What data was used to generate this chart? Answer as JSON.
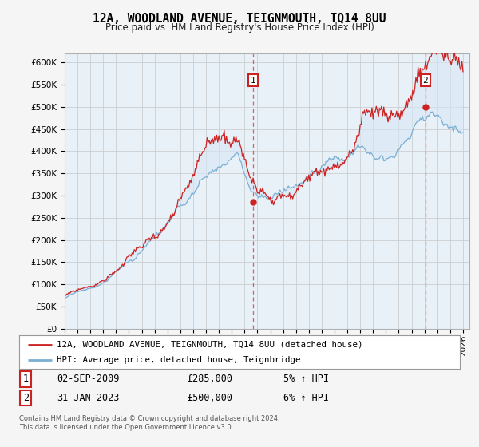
{
  "title": "12A, WOODLAND AVENUE, TEIGNMOUTH, TQ14 8UU",
  "subtitle": "Price paid vs. HM Land Registry's House Price Index (HPI)",
  "ylabel_ticks": [
    "£0",
    "£50K",
    "£100K",
    "£150K",
    "£200K",
    "£250K",
    "£300K",
    "£350K",
    "£400K",
    "£450K",
    "£500K",
    "£550K",
    "£600K"
  ],
  "ytick_values": [
    0,
    50000,
    100000,
    150000,
    200000,
    250000,
    300000,
    350000,
    400000,
    450000,
    500000,
    550000,
    600000
  ],
  "ylim": [
    0,
    620000
  ],
  "xlim_start": 1995.0,
  "xlim_end": 2026.5,
  "x_tick_years": [
    1995,
    1996,
    1997,
    1998,
    1999,
    2000,
    2001,
    2002,
    2003,
    2004,
    2005,
    2006,
    2007,
    2008,
    2009,
    2010,
    2011,
    2012,
    2013,
    2014,
    2015,
    2016,
    2017,
    2018,
    2019,
    2020,
    2021,
    2022,
    2023,
    2024,
    2025,
    2026
  ],
  "sale1_x": 2009.67,
  "sale1_y": 285000,
  "sale2_x": 2023.08,
  "sale2_y": 500000,
  "hpi_line_color": "#7bafd4",
  "hpi_fill_color": "#d6e8f7",
  "price_line_color": "#cc2222",
  "marker_color": "#cc2222",
  "dashed_line_color": "#dd4444",
  "legend_line1": "12A, WOODLAND AVENUE, TEIGNMOUTH, TQ14 8UU (detached house)",
  "legend_line2": "HPI: Average price, detached house, Teignbridge",
  "annotation1_date": "02-SEP-2009",
  "annotation1_price": "£285,000",
  "annotation1_pct": "5% ↑ HPI",
  "annotation2_date": "31-JAN-2023",
  "annotation2_price": "£500,000",
  "annotation2_pct": "6% ↑ HPI",
  "footer": "Contains HM Land Registry data © Crown copyright and database right 2024.\nThis data is licensed under the Open Government Licence v3.0.",
  "bg_color": "#f5f5f5",
  "plot_bg_color": "#e8f0f8",
  "grid_color": "#c8c8c8"
}
